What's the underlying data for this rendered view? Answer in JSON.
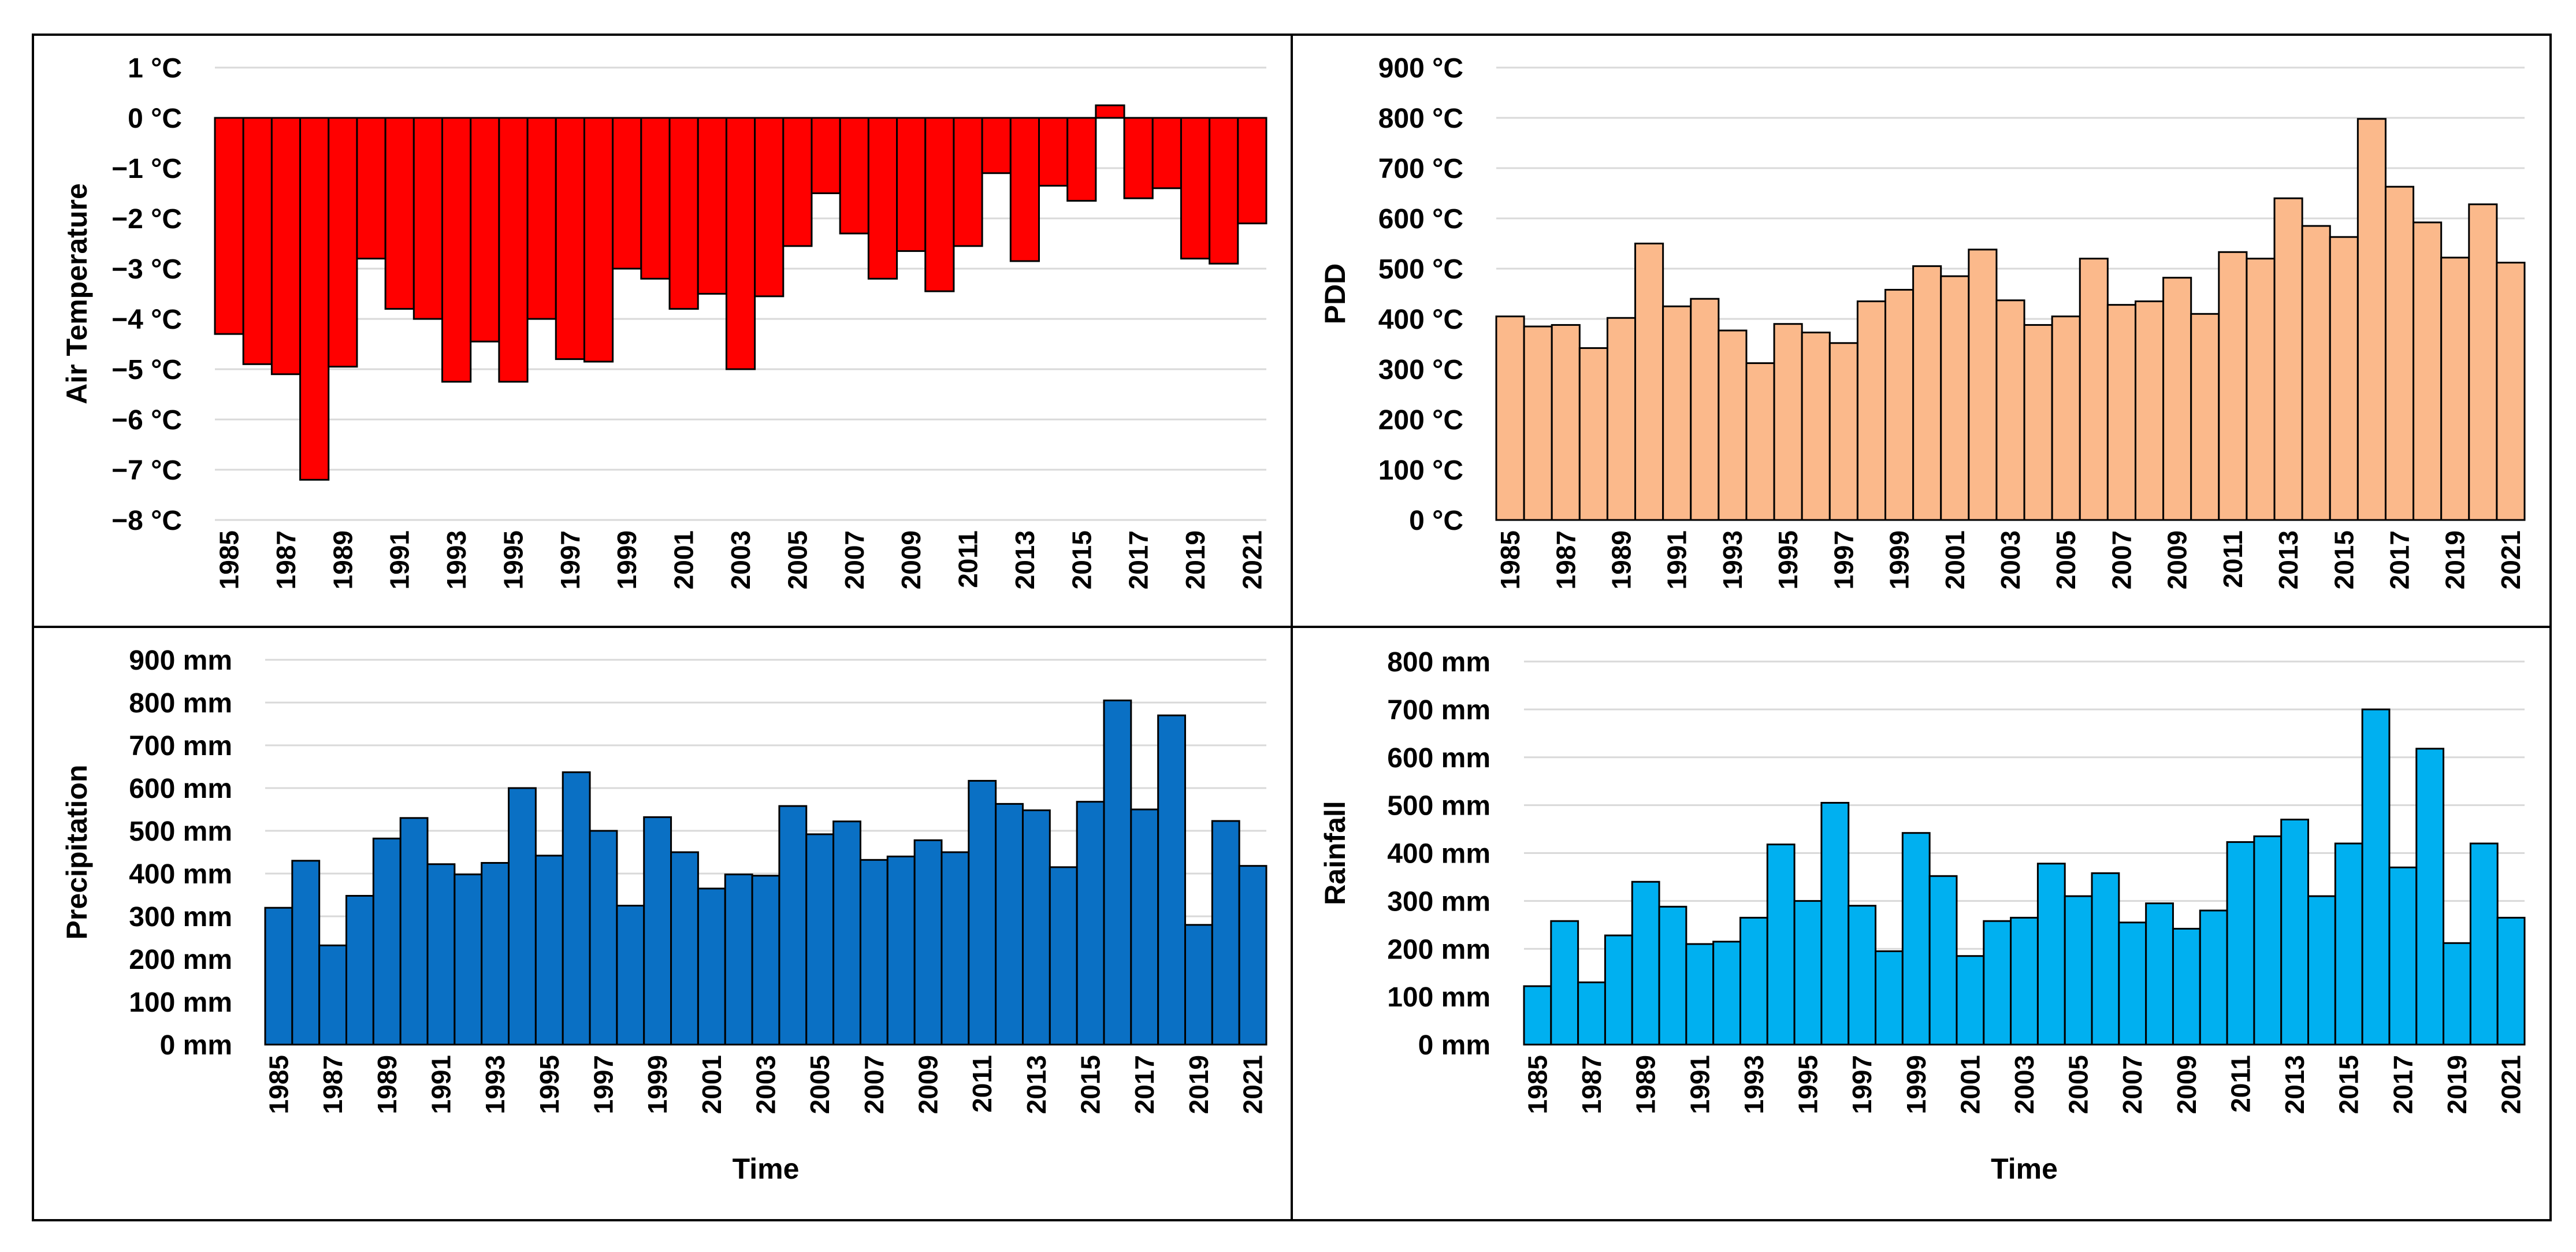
{
  "chart_data": [
    {
      "id": "air-temperature",
      "type": "bar",
      "title": "",
      "xlabel": "",
      "ylabel": "Air Temperature",
      "ylim": [
        -8,
        1
      ],
      "yticks": [
        1,
        0,
        -1,
        -2,
        -3,
        -4,
        -5,
        -6,
        -7,
        -8
      ],
      "ytick_labels": [
        "1 °C",
        "0 °C",
        "−1 °C",
        "−2 °C",
        "−3 °C",
        "−4 °C",
        "−5 °C",
        "−6 °C",
        "−7 °C",
        "−8 °C"
      ],
      "grid": true,
      "color": "#ff0000",
      "categories": [
        1985,
        1986,
        1987,
        1988,
        1989,
        1990,
        1991,
        1992,
        1993,
        1994,
        1995,
        1996,
        1997,
        1998,
        1999,
        2000,
        2001,
        2002,
        2003,
        2004,
        2005,
        2006,
        2007,
        2008,
        2009,
        2010,
        2011,
        2012,
        2013,
        2014,
        2015,
        2016,
        2017,
        2018,
        2019,
        2020,
        2021
      ],
      "xtick_labels": [
        "1985",
        "1987",
        "1989",
        "1991",
        "1993",
        "1995",
        "1997",
        "1999",
        "2001",
        "2003",
        "2005",
        "2007",
        "2009",
        "2011",
        "2013",
        "2015",
        "2017",
        "2019",
        "2021"
      ],
      "values": [
        -4.3,
        -4.9,
        -5.1,
        -7.2,
        -4.95,
        -2.8,
        -3.8,
        -4.0,
        -5.25,
        -4.45,
        -5.25,
        -4.0,
        -4.8,
        -4.85,
        -3.0,
        -3.2,
        -3.8,
        -3.5,
        -5.0,
        -3.55,
        -2.55,
        -1.5,
        -2.3,
        -3.2,
        -2.65,
        -3.45,
        -2.55,
        -1.1,
        -2.85,
        -1.35,
        -1.65,
        0.25,
        -1.6,
        -1.4,
        -2.8,
        -2.9,
        -2.1
      ]
    },
    {
      "id": "pdd",
      "type": "bar",
      "title": "",
      "xlabel": "",
      "ylabel": "PDD",
      "ylim": [
        0,
        900
      ],
      "yticks": [
        900,
        800,
        700,
        600,
        500,
        400,
        300,
        200,
        100,
        0
      ],
      "ytick_labels": [
        "900 °C",
        "800 °C",
        "700 °C",
        "600 °C",
        "500 °C",
        "400 °C",
        "300 °C",
        "200 °C",
        "100 °C",
        "0 °C"
      ],
      "grid": true,
      "color": "#fbb98b",
      "categories": [
        1985,
        1986,
        1987,
        1988,
        1989,
        1990,
        1991,
        1992,
        1993,
        1994,
        1995,
        1996,
        1997,
        1998,
        1999,
        2000,
        2001,
        2002,
        2003,
        2004,
        2005,
        2006,
        2007,
        2008,
        2009,
        2010,
        2011,
        2012,
        2013,
        2014,
        2015,
        2016,
        2017,
        2018,
        2019,
        2020,
        2021
      ],
      "xtick_labels": [
        "1985",
        "1987",
        "1989",
        "1991",
        "1993",
        "1995",
        "1997",
        "1999",
        "2001",
        "2003",
        "2005",
        "2007",
        "2009",
        "2011",
        "2013",
        "2015",
        "2017",
        "2019",
        "2021"
      ],
      "values": [
        405,
        385,
        388,
        342,
        402,
        550,
        425,
        440,
        377,
        312,
        390,
        373,
        352,
        435,
        458,
        505,
        485,
        538,
        437,
        388,
        405,
        520,
        428,
        435,
        482,
        410,
        533,
        520,
        640,
        585,
        563,
        798,
        663,
        592,
        522,
        628,
        512
      ]
    },
    {
      "id": "precipitation",
      "type": "bar",
      "title": "",
      "xlabel": "Time",
      "ylabel": "Precipitation",
      "ylim": [
        0,
        900
      ],
      "yticks": [
        900,
        800,
        700,
        600,
        500,
        400,
        300,
        200,
        100,
        0
      ],
      "ytick_labels": [
        "900 mm",
        "800 mm",
        "700 mm",
        "600 mm",
        "500 mm",
        "400 mm",
        "300 mm",
        "200 mm",
        "100 mm",
        "0 mm"
      ],
      "grid": true,
      "color": "#0a70c4",
      "categories": [
        1985,
        1986,
        1987,
        1988,
        1989,
        1990,
        1991,
        1992,
        1993,
        1994,
        1995,
        1996,
        1997,
        1998,
        1999,
        2000,
        2001,
        2002,
        2003,
        2004,
        2005,
        2006,
        2007,
        2008,
        2009,
        2010,
        2011,
        2012,
        2013,
        2014,
        2015,
        2016,
        2017,
        2018,
        2019,
        2020,
        2021
      ],
      "xtick_labels": [
        "1985",
        "1987",
        "1989",
        "1991",
        "1993",
        "1995",
        "1997",
        "1999",
        "2001",
        "2003",
        "2005",
        "2007",
        "2009",
        "2011",
        "2013",
        "2015",
        "2017",
        "2019",
        "2021"
      ],
      "values": [
        320,
        430,
        232,
        348,
        482,
        530,
        422,
        398,
        425,
        600,
        442,
        637,
        500,
        325,
        532,
        450,
        365,
        398,
        395,
        558,
        492,
        522,
        432,
        440,
        478,
        450,
        617,
        563,
        548,
        415,
        568,
        805,
        550,
        770,
        280,
        523,
        418
      ]
    },
    {
      "id": "rainfall",
      "type": "bar",
      "title": "",
      "xlabel": "Time",
      "ylabel": "Rainfall",
      "ylim": [
        0,
        800
      ],
      "yticks": [
        800,
        700,
        600,
        500,
        400,
        300,
        200,
        100,
        0
      ],
      "ytick_labels": [
        "800 mm",
        "700 mm",
        "600 mm",
        "500 mm",
        "400 mm",
        "300 mm",
        "200 mm",
        "100 mm",
        "0 mm"
      ],
      "grid": true,
      "color": "#00b0f0",
      "categories": [
        1985,
        1986,
        1987,
        1988,
        1989,
        1990,
        1991,
        1992,
        1993,
        1994,
        1995,
        1996,
        1997,
        1998,
        1999,
        2000,
        2001,
        2002,
        2003,
        2004,
        2005,
        2006,
        2007,
        2008,
        2009,
        2010,
        2011,
        2012,
        2013,
        2014,
        2015,
        2016,
        2017,
        2018,
        2019,
        2020,
        2021
      ],
      "xtick_labels": [
        "1985",
        "1987",
        "1989",
        "1991",
        "1993",
        "1995",
        "1997",
        "1999",
        "2001",
        "2003",
        "2005",
        "2007",
        "2009",
        "2011",
        "2013",
        "2015",
        "2017",
        "2019",
        "2021"
      ],
      "values": [
        122,
        258,
        130,
        228,
        340,
        288,
        210,
        215,
        265,
        418,
        300,
        505,
        290,
        195,
        442,
        352,
        185,
        258,
        265,
        378,
        310,
        358,
        255,
        295,
        242,
        280,
        423,
        435,
        470,
        310,
        420,
        700,
        370,
        618,
        212,
        420,
        265
      ]
    }
  ]
}
